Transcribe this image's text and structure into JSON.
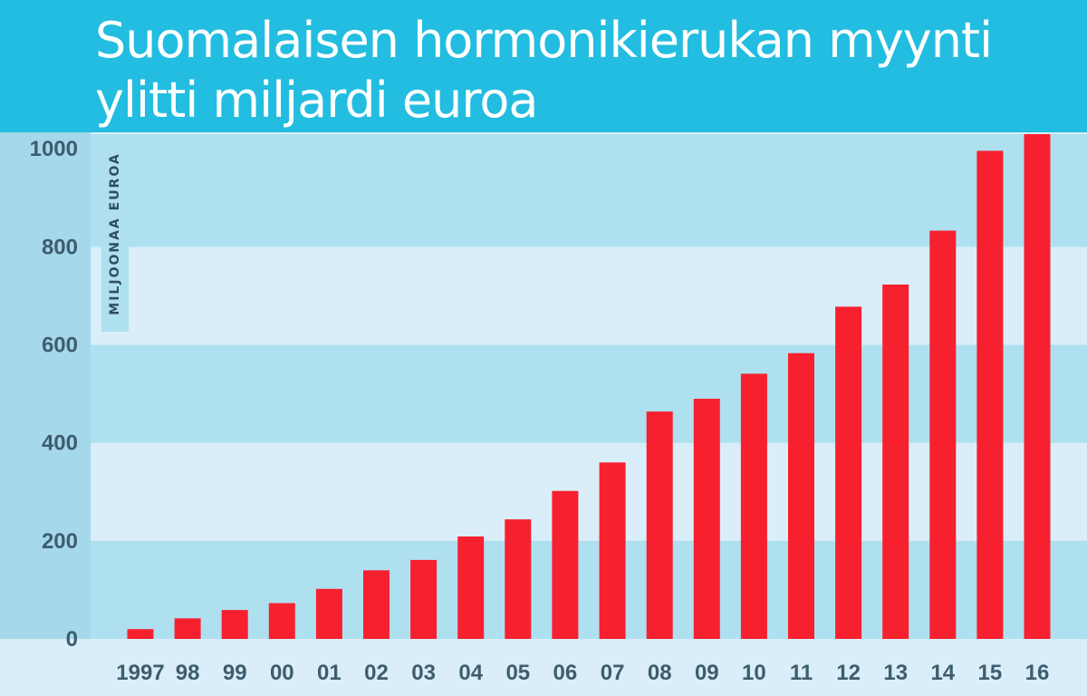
{
  "chart_data": {
    "type": "bar",
    "title": "Suomalaisen hormonikierukan myynti ylitti miljardi euroa",
    "ylabel": "MILJOONAA EUROA",
    "xlabel": "",
    "categories": [
      "1997",
      "98",
      "99",
      "00",
      "01",
      "02",
      "03",
      "04",
      "05",
      "06",
      "07",
      "08",
      "09",
      "10",
      "11",
      "12",
      "13",
      "14",
      "15",
      "16"
    ],
    "values": [
      20,
      42,
      59,
      73,
      102,
      140,
      161,
      209,
      244,
      302,
      360,
      464,
      490,
      541,
      583,
      678,
      723,
      833,
      996,
      1030
    ],
    "yticks": [
      "0",
      "200",
      "400",
      "600",
      "800",
      "1000"
    ],
    "ylim": [
      0,
      1030
    ],
    "grid": true,
    "colors": {
      "bar": "#f7202f",
      "band_dark": "#afe0f0",
      "band_light": "#d9eef8",
      "header": "#22bde0",
      "axis_panel": "#a6d8ec"
    }
  }
}
